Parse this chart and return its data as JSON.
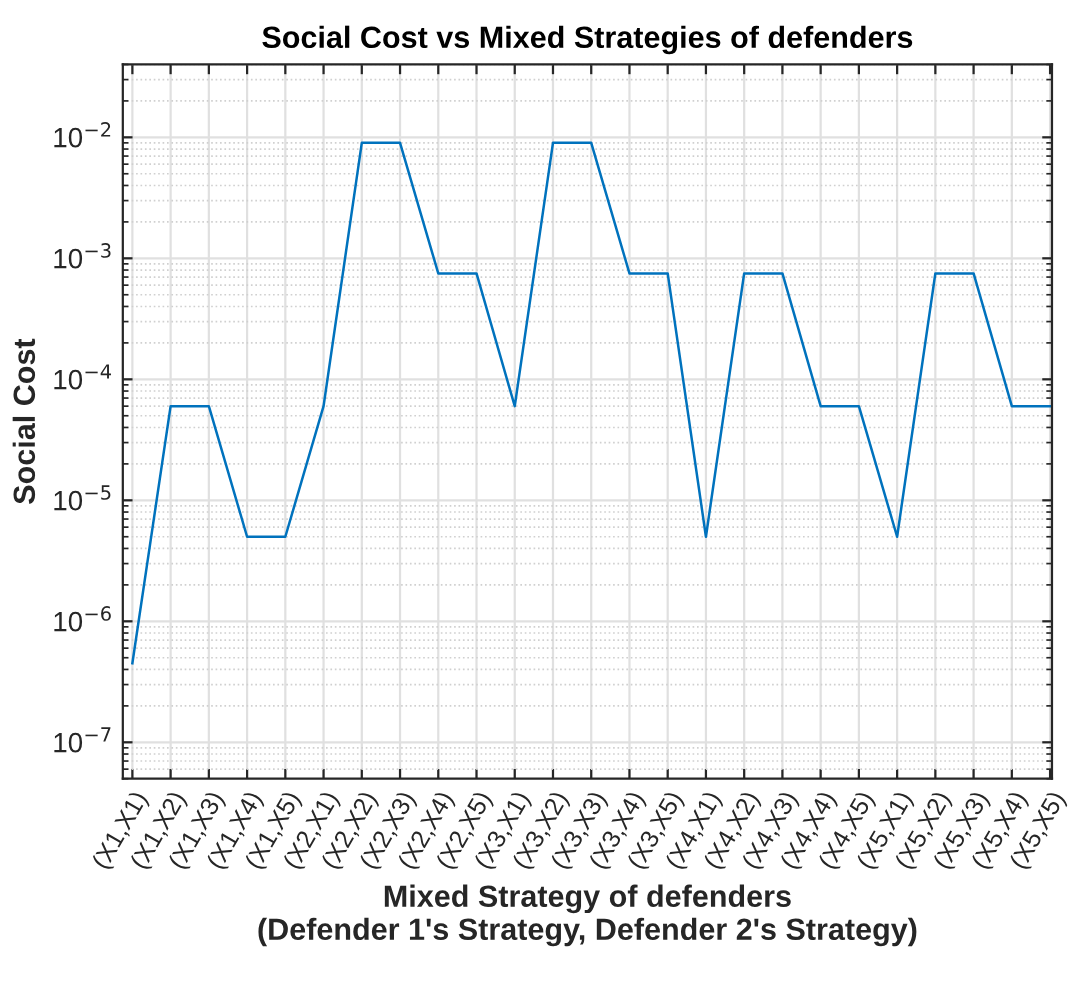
{
  "chart_data": {
    "type": "line",
    "title": "Social Cost vs Mixed Strategies of defenders",
    "xlabel": "Mixed Strategy of defenders\n(Defender 1's Strategy, Defender 2's Strategy)",
    "ylabel": "Social Cost",
    "categories": [
      "(X1,X1)",
      "(X1,X2)",
      "(X1,X3)",
      "(X1,X4)",
      "(X1,X5)",
      "(X2,X1)",
      "(X2,X2)",
      "(X2,X3)",
      "(X2,X4)",
      "(X2,X5)",
      "(X3,X1)",
      "(X3,X2)",
      "(X3,X3)",
      "(X3,X4)",
      "(X3,X5)",
      "(X4,X1)",
      "(X4,X2)",
      "(X4,X3)",
      "(X4,X4)",
      "(X4,X5)",
      "(X5,X1)",
      "(X5,X2)",
      "(X5,X3)",
      "(X5,X4)",
      "(X5,X5)"
    ],
    "series": [
      {
        "color": "#0072bd",
        "values": [
          4.5e-07,
          6e-05,
          6e-05,
          5e-06,
          5e-06,
          6e-05,
          0.009,
          0.009,
          0.00075,
          0.00075,
          6e-05,
          0.009,
          0.009,
          0.00075,
          0.00075,
          5e-06,
          0.00075,
          0.00075,
          6e-05,
          6e-05,
          5e-06,
          0.00075,
          0.00075,
          6e-05,
          6e-05
        ]
      }
    ],
    "log": "y",
    "ylim": [
      5e-08,
      0.04
    ],
    "yticks": [
      {
        "value": 1e-07,
        "label": "10$^{−7}$"
      },
      {
        "value": 1e-06,
        "label": "10$^{−6}$"
      },
      {
        "value": 1e-05,
        "label": "10$^{−5}$"
      },
      {
        "value": 0.0001,
        "label": "10$^{−4}$"
      },
      {
        "value": 0.001,
        "label": "10$^{−3}$"
      },
      {
        "value": 0.01,
        "label": "10$^{−2}$"
      }
    ],
    "grid": true,
    "line_style": "solid",
    "marker": "none"
  }
}
